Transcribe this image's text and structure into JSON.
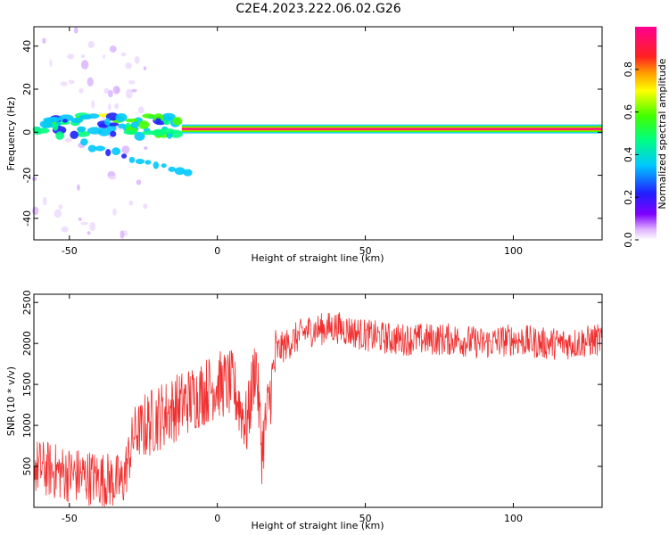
{
  "figure": {
    "title": "C2E4.2023.222.06.02.G26"
  },
  "chart_data": [
    {
      "type": "heatmap",
      "title": "C2E4.2023.222.06.02.G26",
      "xlabel": "Height of straight line (km)",
      "ylabel": "Frequency (Hz)",
      "xlim": [
        -62,
        130
      ],
      "ylim": [
        -50,
        49
      ],
      "xticks": [
        -50,
        0,
        50,
        100
      ],
      "yticks": [
        -40,
        -20,
        0,
        20,
        40
      ],
      "colorbar": {
        "label": "Normalized spectral amplitude",
        "range": [
          0,
          1
        ],
        "ticks": [
          0.0,
          0.2,
          0.4,
          0.6,
          0.8
        ],
        "tick_labels": [
          "0.0",
          "0.2",
          "0.4",
          "0.6",
          "0.8"
        ],
        "colormap": "rainbow (white-violet-blue-cyan-green-yellow-red-magenta)"
      },
      "features": [
        {
          "x_range": [
            -62,
            -12
          ],
          "freq_hz": [
            -2,
            8
          ],
          "amplitude": 0.45,
          "note": "scattered blobs near signal line"
        },
        {
          "x_range": [
            -45,
            -10
          ],
          "freq_hz": [
            -20,
            -5
          ],
          "amplitude": 0.3,
          "note": "diagonal drift feature"
        },
        {
          "x_range": [
            -12,
            130
          ],
          "freq_hz": [
            0,
            3
          ],
          "amplitude": 0.95,
          "note": "main signal line"
        }
      ]
    },
    {
      "type": "line",
      "xlabel": "Height of straight line (km)",
      "ylabel": "SNR (10 * v/v)",
      "xlim": [
        -62,
        130
      ],
      "ylim": [
        0,
        2600
      ],
      "xticks": [
        -50,
        0,
        50,
        100
      ],
      "yticks": [
        500,
        1000,
        1500,
        2000,
        2500
      ],
      "grid": false,
      "series": [
        {
          "color": "#f03030",
          "x": [
            -62,
            -50,
            -40,
            -32,
            -28,
            -20,
            -10,
            0,
            5,
            10,
            13,
            15,
            20,
            30,
            40,
            50,
            60,
            70,
            80,
            90,
            100,
            110,
            120,
            130
          ],
          "y": [
            500,
            400,
            350,
            300,
            900,
            1100,
            1300,
            1500,
            1500,
            1000,
            1800,
            700,
            1900,
            2150,
            2200,
            2100,
            2050,
            2050,
            2050,
            2000,
            2050,
            2000,
            2000,
            2050
          ]
        }
      ]
    }
  ]
}
